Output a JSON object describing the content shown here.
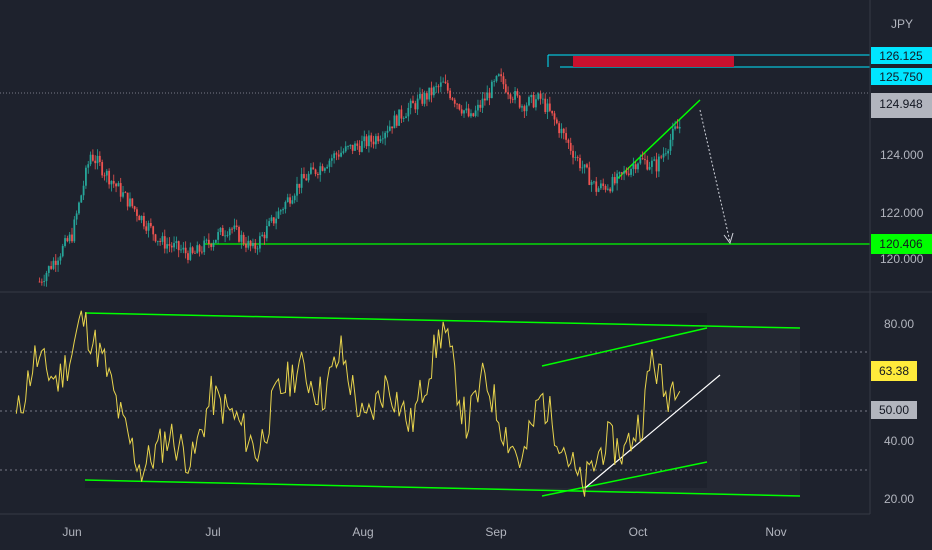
{
  "chart_data": {
    "type": "candlestick",
    "currency_label": "JPY",
    "x_ticks": [
      "Jun",
      "Jul",
      "Aug",
      "Sep",
      "Oct",
      "Nov"
    ],
    "price_panel": {
      "ylim": [
        119.2,
        127.5
      ],
      "y_ticks": [
        "124.000",
        "122.000",
        "120.000"
      ],
      "key_points": [
        {
          "date": "May 25",
          "price": 119.6
        },
        {
          "date": "Jun 1",
          "price": 121.2
        },
        {
          "date": "Jun 5",
          "price": 124.0
        },
        {
          "date": "Jun 12",
          "price": 122.6
        },
        {
          "date": "Jun 20",
          "price": 121.0
        },
        {
          "date": "Jun 27",
          "price": 120.5
        },
        {
          "date": "Jul 5",
          "price": 121.5
        },
        {
          "date": "Jul 10",
          "price": 120.7
        },
        {
          "date": "Jul 20",
          "price": 123.0
        },
        {
          "date": "Jul 28",
          "price": 124.0
        },
        {
          "date": "Aug 5",
          "price": 124.5
        },
        {
          "date": "Aug 12",
          "price": 125.5
        },
        {
          "date": "Aug 20",
          "price": 126.4
        },
        {
          "date": "Aug 26",
          "price": 125.2
        },
        {
          "date": "Sep 1",
          "price": 126.6
        },
        {
          "date": "Sep 6",
          "price": 125.7
        },
        {
          "date": "Sep 10",
          "price": 125.9
        },
        {
          "date": "Sep 14",
          "price": 124.9
        },
        {
          "date": "Sep 18",
          "price": 123.8
        },
        {
          "date": "Sep 22",
          "price": 122.8
        },
        {
          "date": "Sep 26",
          "price": 123.0
        },
        {
          "date": "Oct 1",
          "price": 123.8
        },
        {
          "date": "Oct 5",
          "price": 123.6
        },
        {
          "date": "Oct 9",
          "price": 124.8
        },
        {
          "date": "Oct 10",
          "price": 124.95
        }
      ],
      "price_tags": [
        {
          "label": "126.125",
          "bg": "#00e5ff",
          "fg": "#131722"
        },
        {
          "label": "125.750",
          "bg": "#00e5ff",
          "fg": "#131722"
        },
        {
          "label": "124.948",
          "bg": "#b2b5be",
          "fg": "#131722"
        },
        {
          "label": "120.406",
          "bg": "#00ff00",
          "fg": "#131722"
        }
      ]
    },
    "rsi_panel": {
      "ylim": [
        16,
        90
      ],
      "y_ticks": [
        "80.00",
        "40.00",
        "20.00"
      ],
      "value_tags": [
        {
          "label": "63.38",
          "bg": "#ffeb3b",
          "fg": "#131722"
        },
        {
          "label": "50.00",
          "bg": "#b2b5be",
          "fg": "#131722"
        }
      ],
      "key_points": [
        {
          "date": "May 20",
          "value": 47
        },
        {
          "date": "May 24",
          "value": 68
        },
        {
          "date": "May 29",
          "value": 60
        },
        {
          "date": "Jun 1",
          "value": 70
        },
        {
          "date": "Jun 3",
          "value": 82
        },
        {
          "date": "Jun 8",
          "value": 66
        },
        {
          "date": "Jun 12",
          "value": 45
        },
        {
          "date": "Jun 16",
          "value": 30
        },
        {
          "date": "Jun 22",
          "value": 42
        },
        {
          "date": "Jun 27",
          "value": 33
        },
        {
          "date": "Jul 1",
          "value": 55
        },
        {
          "date": "Jul 6",
          "value": 48
        },
        {
          "date": "Jul 11",
          "value": 36
        },
        {
          "date": "Jul 15",
          "value": 55
        },
        {
          "date": "Jul 20",
          "value": 65
        },
        {
          "date": "Jul 25",
          "value": 55
        },
        {
          "date": "Jul 29",
          "value": 70
        },
        {
          "date": "Aug 3",
          "value": 45
        },
        {
          "date": "Aug 8",
          "value": 60
        },
        {
          "date": "Aug 13",
          "value": 45
        },
        {
          "date": "Aug 20",
          "value": 79
        },
        {
          "date": "Aug 25",
          "value": 45
        },
        {
          "date": "Aug 29",
          "value": 62
        },
        {
          "date": "Sep 2",
          "value": 44
        },
        {
          "date": "Sep 6",
          "value": 32
        },
        {
          "date": "Sep 10",
          "value": 55
        },
        {
          "date": "Sep 14",
          "value": 42
        },
        {
          "date": "Sep 19",
          "value": 23
        },
        {
          "date": "Sep 24",
          "value": 40
        },
        {
          "date": "Sep 28",
          "value": 36
        },
        {
          "date": "Oct 2",
          "value": 48
        },
        {
          "date": "Oct 4",
          "value": 69
        },
        {
          "date": "Oct 7",
          "value": 55
        },
        {
          "date": "Oct 10",
          "value": 63.4
        }
      ]
    }
  }
}
